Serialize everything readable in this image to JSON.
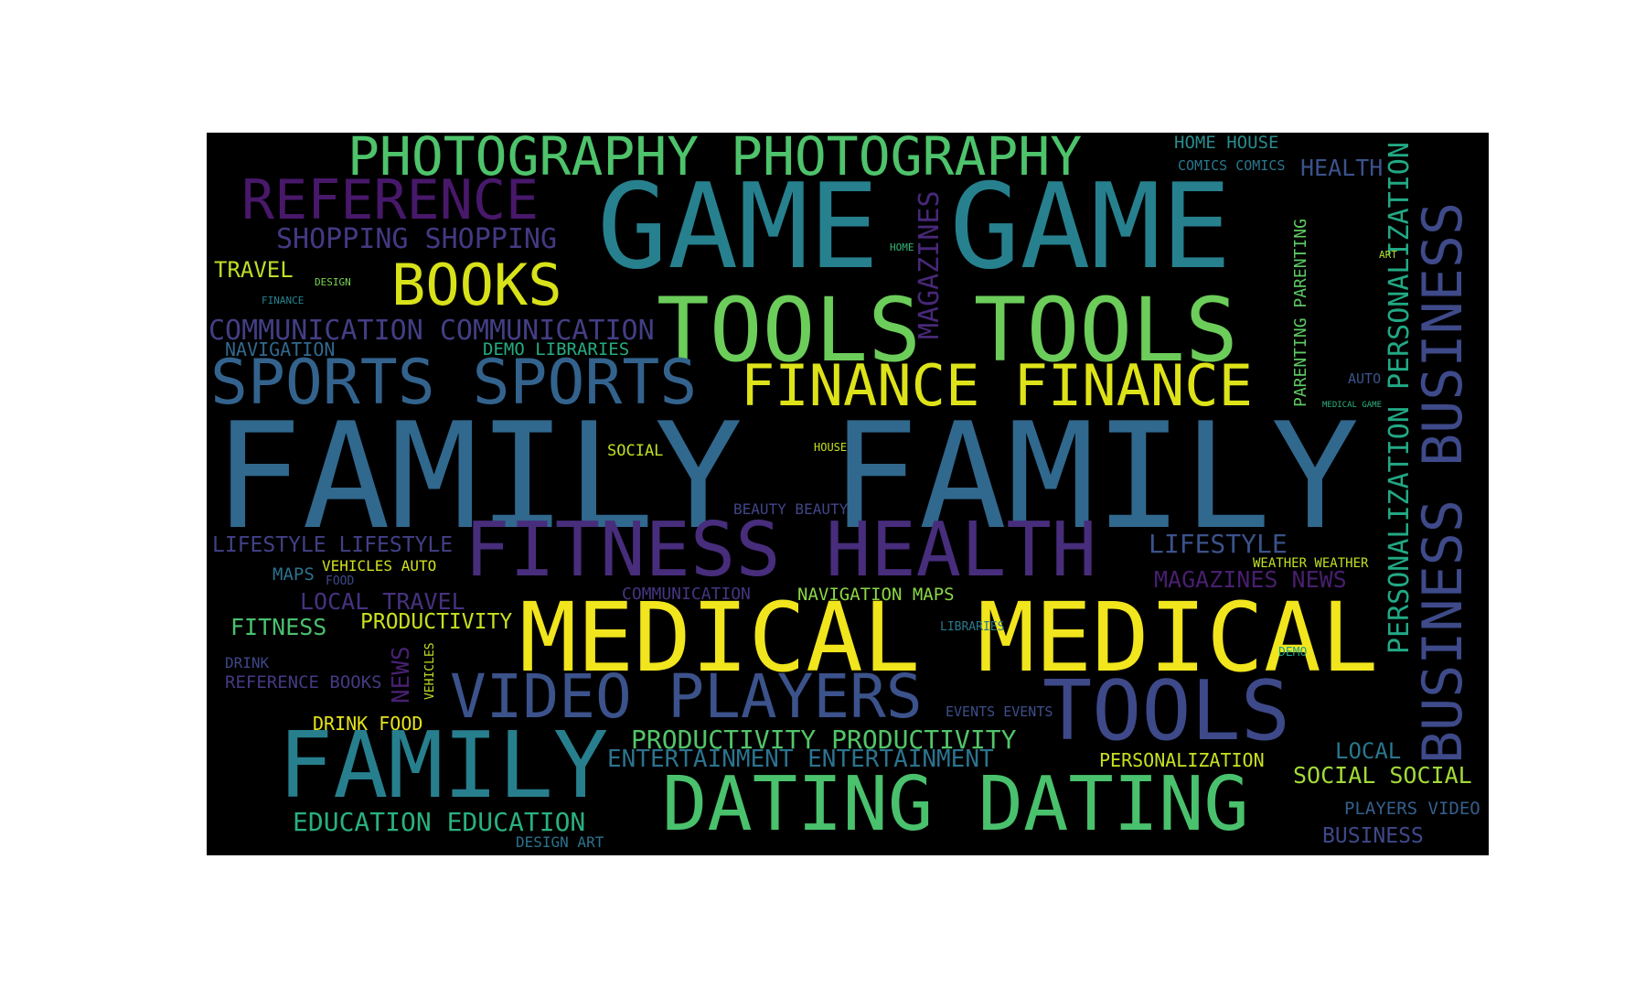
{
  "wordcloud": {
    "background": "#000000",
    "colormap": "viridis",
    "words": [
      {
        "text": "PHOTOGRAPHY PHOTOGRAPHY",
        "color": "#4ec36b"
      },
      {
        "text": "HOME HOUSE",
        "color": "#2a8b8c"
      },
      {
        "text": "COMICS COMICS",
        "color": "#2a788e"
      },
      {
        "text": "HEALTH",
        "color": "#3b528b"
      },
      {
        "text": "REFERENCE",
        "color": "#48186a"
      },
      {
        "text": "GAME GAME",
        "color": "#27808e"
      },
      {
        "text": "SHOPPING SHOPPING",
        "color": "#443983"
      },
      {
        "text": "HOME",
        "color": "#35b779"
      },
      {
        "text": "MAGAZINES",
        "color": "#482878"
      },
      {
        "text": "PARENTING PARENTING",
        "color": "#5ec962"
      },
      {
        "text": "PERSONALIZATION PERSONALIZATION",
        "color": "#22a884"
      },
      {
        "text": "BUSINESS BUSINESS",
        "color": "#3e4a89"
      },
      {
        "text": "TRAVEL",
        "color": "#bddf26"
      },
      {
        "text": "DESIGN",
        "color": "#7ad151"
      },
      {
        "text": "BOOKS",
        "color": "#d8e219"
      },
      {
        "text": "ART",
        "color": "#b5de2b"
      },
      {
        "text": "FINANCE",
        "color": "#26828e"
      },
      {
        "text": "TOOLS TOOLS",
        "color": "#6ccd5a"
      },
      {
        "text": "COMMUNICATION COMMUNICATION",
        "color": "#433e85"
      },
      {
        "text": "NAVIGATION",
        "color": "#31688e"
      },
      {
        "text": "DEMO LIBRARIES",
        "color": "#25ac82"
      },
      {
        "text": "SPORTS SPORTS",
        "color": "#33638d"
      },
      {
        "text": "FINANCE FINANCE",
        "color": "#dde318"
      },
      {
        "text": "AUTO",
        "color": "#3a548c"
      },
      {
        "text": "MEDICAL GAME",
        "color": "#2db27d"
      },
      {
        "text": "FAMILY FAMILY",
        "color": "#31688e"
      },
      {
        "text": "SOCIAL",
        "color": "#c2df23"
      },
      {
        "text": "HOUSE",
        "color": "#c8e020"
      },
      {
        "text": "BEAUTY BEAUTY",
        "color": "#404688"
      },
      {
        "text": "LIFESTYLE LIFESTYLE",
        "color": "#424086"
      },
      {
        "text": "FITNESS HEALTH",
        "color": "#472d7b"
      },
      {
        "text": "LIFESTYLE",
        "color": "#3b528b"
      },
      {
        "text": "VEHICLES AUTO",
        "color": "#d0e11c"
      },
      {
        "text": "WEATHER WEATHER",
        "color": "#c2df23"
      },
      {
        "text": "MAPS",
        "color": "#2c728e"
      },
      {
        "text": "FOOD",
        "color": "#3e4989"
      },
      {
        "text": "MAGAZINES NEWS",
        "color": "#481f70"
      },
      {
        "text": "COMMUNICATION",
        "color": "#453581"
      },
      {
        "text": "NAVIGATION MAPS",
        "color": "#8bd646"
      },
      {
        "text": "LOCAL TRAVEL",
        "color": "#46327e"
      },
      {
        "text": "FITNESS",
        "color": "#4ac16d"
      },
      {
        "text": "PRODUCTIVITY",
        "color": "#c8e020"
      },
      {
        "text": "MEDICAL MEDICAL",
        "color": "#f1e51d"
      },
      {
        "text": "LIBRARIES",
        "color": "#2a788e"
      },
      {
        "text": "DEMO",
        "color": "#20a386"
      },
      {
        "text": "DRINK",
        "color": "#3f4788"
      },
      {
        "text": "NEWS",
        "color": "#482071"
      },
      {
        "text": "VEHICLES",
        "color": "#c0df25"
      },
      {
        "text": "REFERENCE BOOKS",
        "color": "#443a83"
      },
      {
        "text": "VIDEO PLAYERS",
        "color": "#3b528b"
      },
      {
        "text": "EVENTS EVENTS",
        "color": "#3d4e8a"
      },
      {
        "text": "TOOLS",
        "color": "#3e4989"
      },
      {
        "text": "DRINK FOOD",
        "color": "#e5e419"
      },
      {
        "text": "PRODUCTIVITY PRODUCTIVITY",
        "color": "#52c569"
      },
      {
        "text": "ENTERTAINMENT ENTERTAINMENT",
        "color": "#2c738e"
      },
      {
        "text": "PERSONALIZATION",
        "color": "#c8e020"
      },
      {
        "text": "LOCAL",
        "color": "#2a778e"
      },
      {
        "text": "SOCIAL SOCIAL",
        "color": "#a2da37"
      },
      {
        "text": "FAMILY",
        "color": "#277f8e"
      },
      {
        "text": "DATING DATING",
        "color": "#4ac16d"
      },
      {
        "text": "EDUCATION EDUCATION",
        "color": "#2ab07f"
      },
      {
        "text": "DESIGN ART",
        "color": "#2c728e"
      },
      {
        "text": "PLAYERS VIDEO",
        "color": "#355f8d"
      },
      {
        "text": "BUSINESS",
        "color": "#3f4889"
      }
    ]
  }
}
